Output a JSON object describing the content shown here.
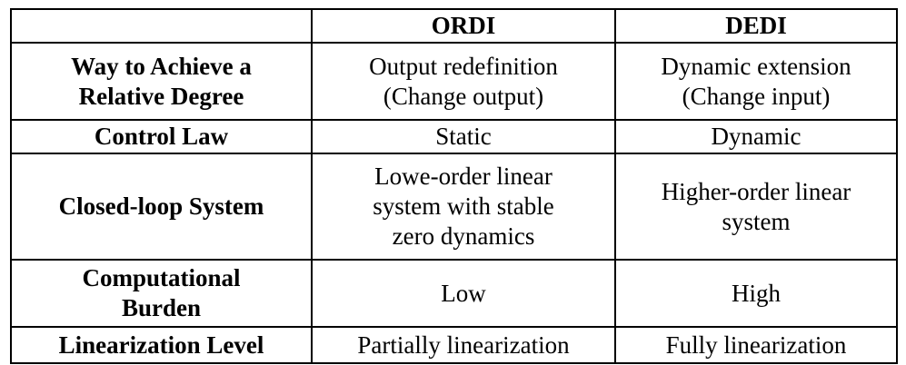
{
  "table": {
    "headers": [
      "",
      "ORDI",
      "DEDI"
    ],
    "rows": [
      {
        "label": "Way to Achieve a\nRelative Degree",
        "ordi": "Output redefinition\n(Change output)",
        "dedi": "Dynamic extension\n(Change input)"
      },
      {
        "label": "Control Law",
        "ordi": "Static",
        "dedi": "Dynamic"
      },
      {
        "label": "Closed-loop System",
        "ordi": "Lowe-order linear\nsystem with stable\nzero dynamics",
        "dedi": "Higher-order linear\nsystem"
      },
      {
        "label": "Computational\nBurden",
        "ordi": "Low",
        "dedi": "High"
      },
      {
        "label": "Linearization Level",
        "ordi": "Partially linearization",
        "dedi": "Fully linearization"
      }
    ]
  }
}
